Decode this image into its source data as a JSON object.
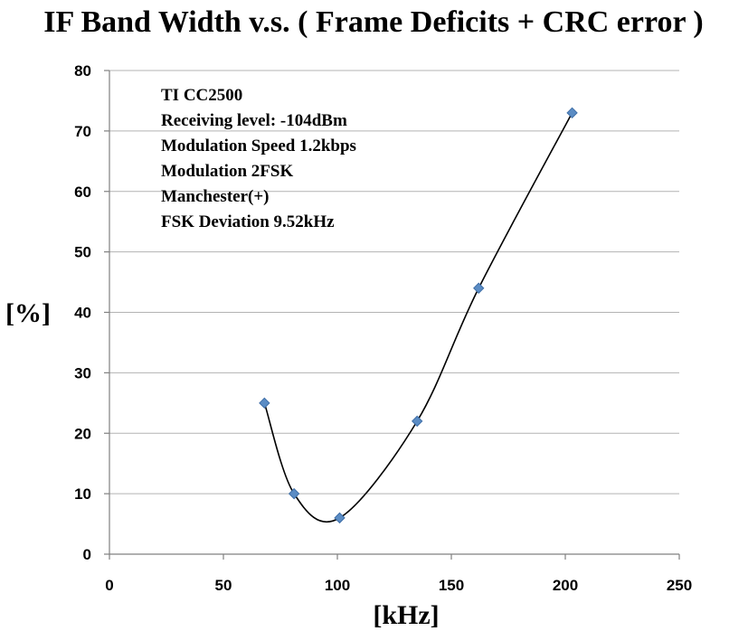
{
  "chart_data": {
    "type": "scatter",
    "title": "IF Band Width v.s. ( Frame Deficits + CRC error )",
    "xlabel": "[kHz]",
    "ylabel": "[%]",
    "xlim": [
      0,
      250
    ],
    "ylim": [
      0,
      80
    ],
    "x_ticks": [
      "0",
      "50",
      "100",
      "150",
      "200",
      "250"
    ],
    "y_ticks": [
      "0",
      "10",
      "20",
      "30",
      "40",
      "50",
      "60",
      "70",
      "80"
    ],
    "grid": "horizontal",
    "legend": "none",
    "series": [
      {
        "points": [
          {
            "x": 68,
            "y": 25
          },
          {
            "x": 81,
            "y": 10
          },
          {
            "x": 101,
            "y": 6
          },
          {
            "x": 135,
            "y": 22
          },
          {
            "x": 162,
            "y": 44
          },
          {
            "x": 203,
            "y": 73
          }
        ],
        "trendline": "smooth curve",
        "marker": "diamond",
        "color": "#5b8cc4"
      }
    ],
    "annotations": [
      "TI CC2500",
      "Receiving level: -104dBm",
      "Modulation Speed 1.2kbps",
      "Modulation 2FSK",
      "Manchester(+)",
      "FSK Deviation 9.52kHz"
    ]
  }
}
